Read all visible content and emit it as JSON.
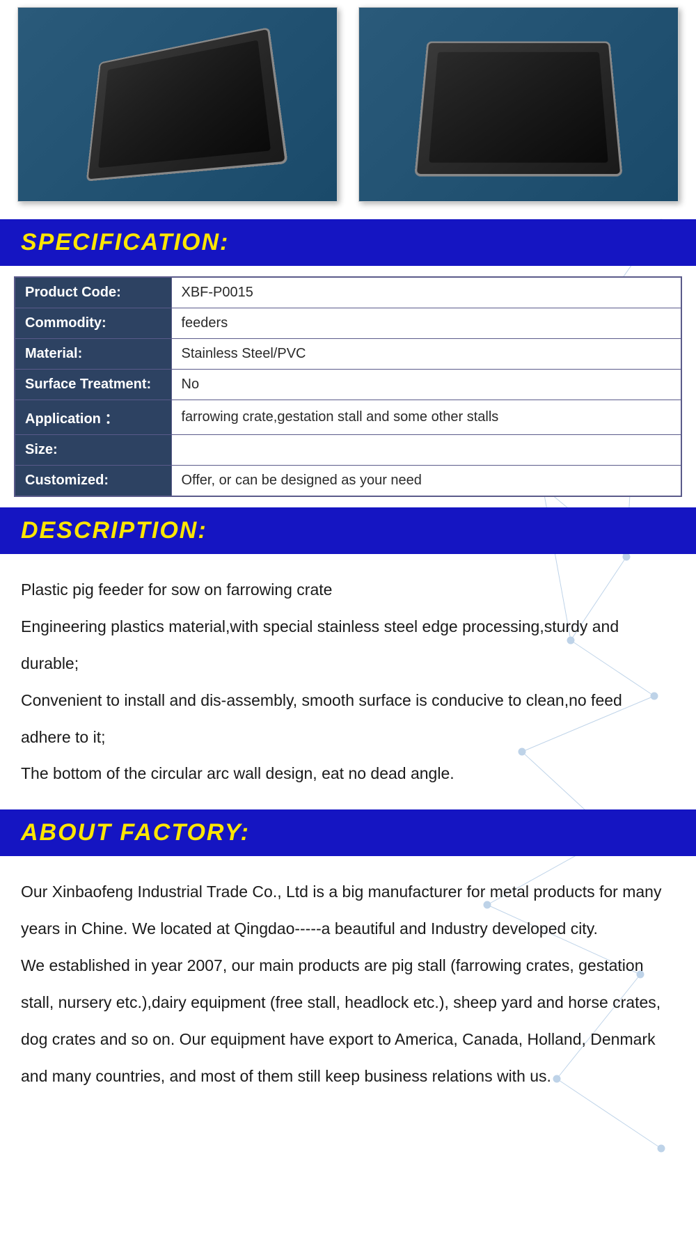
{
  "sections": {
    "specification": "SPECIFICATION:",
    "description": "DESCRIPTION:",
    "about_factory": "ABOUT FACTORY:"
  },
  "spec_table": {
    "rows": [
      {
        "label": "Product Code:",
        "value": "XBF-P0015"
      },
      {
        "label": "Commodity:",
        "value": "feeders"
      },
      {
        "label": "Material:",
        "value": "Stainless Steel/PVC"
      },
      {
        "label": "Surface Treatment:",
        "value": "No"
      },
      {
        "label": "Application ：",
        "value": "farrowing crate,gestation stall and some other stalls"
      },
      {
        "label": "Size:",
        "value": ""
      },
      {
        "label": "Customized:",
        "value": "Offer, or can be designed as your need"
      }
    ],
    "header_bg": "#2d4262",
    "header_color": "#ffffff",
    "cell_bg": "#ffffff",
    "border_color": "#5a5a8a"
  },
  "description_text": "Plastic pig feeder for sow on farrowing crate\nEngineering plastics material,with special stainless steel edge processing,sturdy and durable;\nConvenient to install and dis-assembly, smooth surface is conducive to clean,no feed adhere to it;\nThe bottom of the circular arc wall design, eat no dead angle.",
  "factory_text": "Our Xinbaofeng Industrial Trade Co., Ltd is a big manufacturer for metal products for many years in Chine. We located at Qingdao-----a beautiful and Industry developed city.\nWe established in year 2007, our main products are pig stall (farrowing crates, gestation stall, nursery etc.),dairy equipment (free stall, headlock etc.), sheep yard and horse crates, dog crates and so on. Our equipment have export to America, Canada, Holland, Denmark and many countries, and most of them still keep business relations with us.",
  "colors": {
    "header_bg": "#1515c2",
    "header_text": "#fee600",
    "body_text": "#1a1a1a"
  }
}
